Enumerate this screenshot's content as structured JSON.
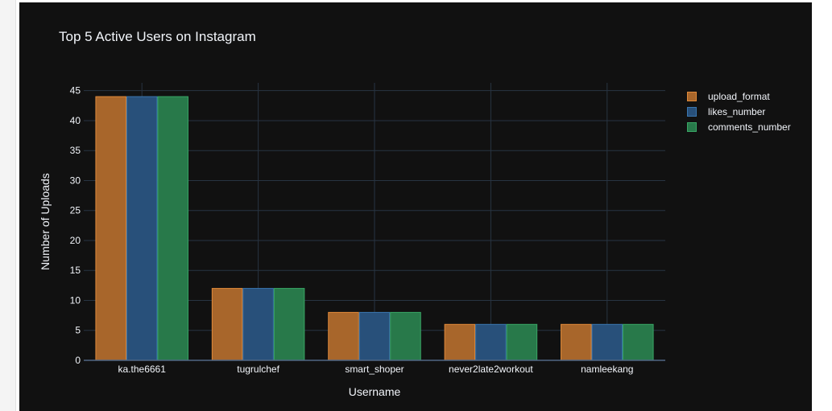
{
  "chart_data": {
    "type": "bar",
    "title": "Top 5 Active Users on Instagram",
    "xlabel": "Username",
    "ylabel": "Number of Uploads",
    "categories": [
      "ka.the6661",
      "tugrulchef",
      "smart_shoper",
      "never2late2workout",
      "namleekang"
    ],
    "series": [
      {
        "name": "upload_format",
        "values": [
          44,
          12,
          8,
          6,
          6
        ],
        "color": "#a8662b",
        "border": "#e08a3a"
      },
      {
        "name": "likes_number",
        "values": [
          44,
          12,
          8,
          6,
          6
        ],
        "color": "#28507a",
        "border": "#3a76b0"
      },
      {
        "name": "comments_number",
        "values": [
          44,
          12,
          8,
          6,
          6
        ],
        "color": "#28794a",
        "border": "#39a665"
      }
    ],
    "y_ticks": [
      0,
      5,
      10,
      15,
      20,
      25,
      30,
      35,
      40,
      45
    ],
    "ylim": [
      0,
      46.3
    ],
    "grid": true,
    "legend_position": "top-right"
  },
  "colors": {
    "panel_background": "#111111",
    "grid": "#283442",
    "text": "#f2f5fa"
  }
}
